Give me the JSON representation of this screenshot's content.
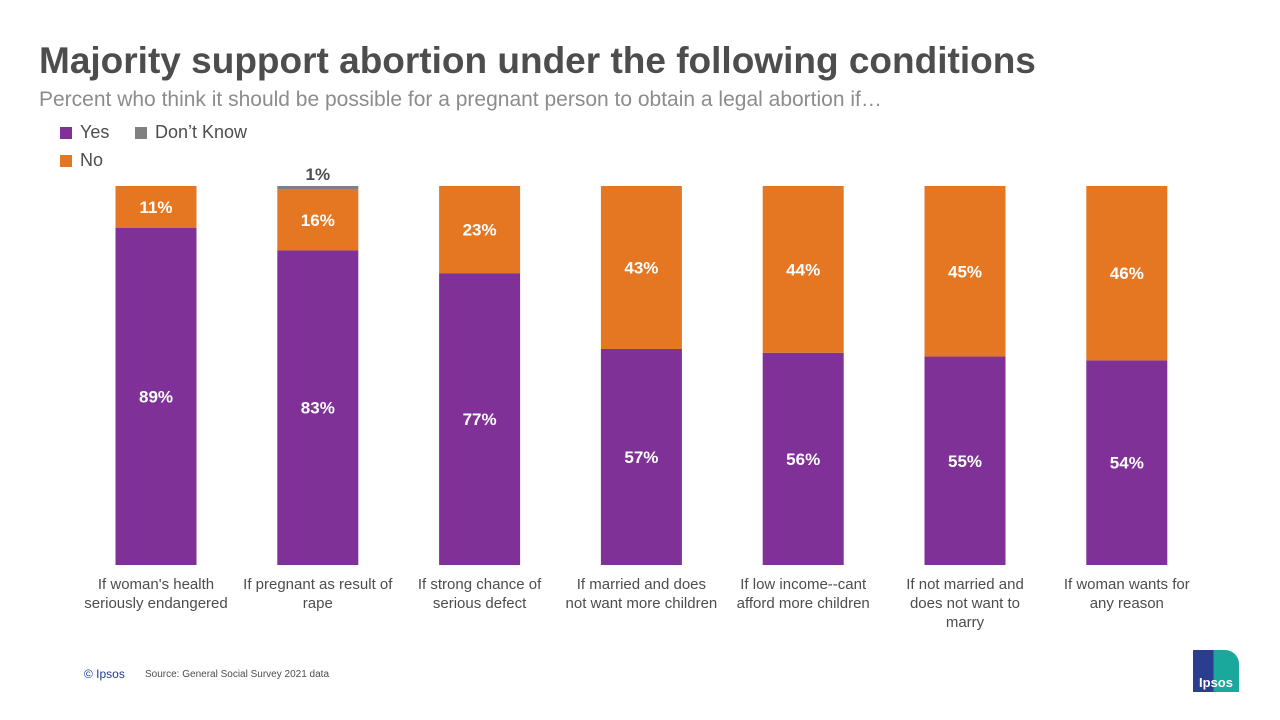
{
  "chart_data": {
    "type": "bar",
    "stacked": true,
    "title": "Majority support abortion under the following conditions",
    "subtitle": "Percent who think it should be possible for a pregnant person to obtain a legal abortion if…",
    "categories": [
      [
        "If woman's health",
        "seriously endangered"
      ],
      [
        "If pregnant as result of",
        "rape"
      ],
      [
        "If strong chance of",
        "serious defect"
      ],
      [
        "If married and does",
        "not want more children"
      ],
      [
        "If low income--cant",
        "afford more children"
      ],
      [
        "If not married and",
        "does not want to",
        "marry"
      ],
      [
        "If woman wants for",
        "any reason"
      ]
    ],
    "series": [
      {
        "name": "Yes",
        "color": "#7f3198",
        "values": [
          89,
          83,
          77,
          57,
          56,
          55,
          54
        ]
      },
      {
        "name": "No",
        "color": "#e57722",
        "values": [
          11,
          16,
          23,
          43,
          44,
          45,
          46
        ]
      },
      {
        "name": "Don’t Know",
        "color": "#808080",
        "values": [
          0,
          1,
          0,
          0,
          0,
          0,
          0
        ]
      }
    ],
    "data_labels": {
      "Yes": [
        "89%",
        "83%",
        "77%",
        "57%",
        "56%",
        "55%",
        "54%"
      ],
      "No": [
        "11%",
        "16%",
        "23%",
        "43%",
        "44%",
        "45%",
        "46%"
      ],
      "Don’t Know": [
        "",
        "1%",
        "",
        "",
        "",
        "",
        ""
      ]
    },
    "ylim": [
      0,
      100
    ],
    "legend": "top-left",
    "grid": false
  },
  "footer": {
    "copyright": "© Ipsos",
    "source": "Source: General Social Survey 2021 data"
  },
  "logo_text": "Ipsos"
}
